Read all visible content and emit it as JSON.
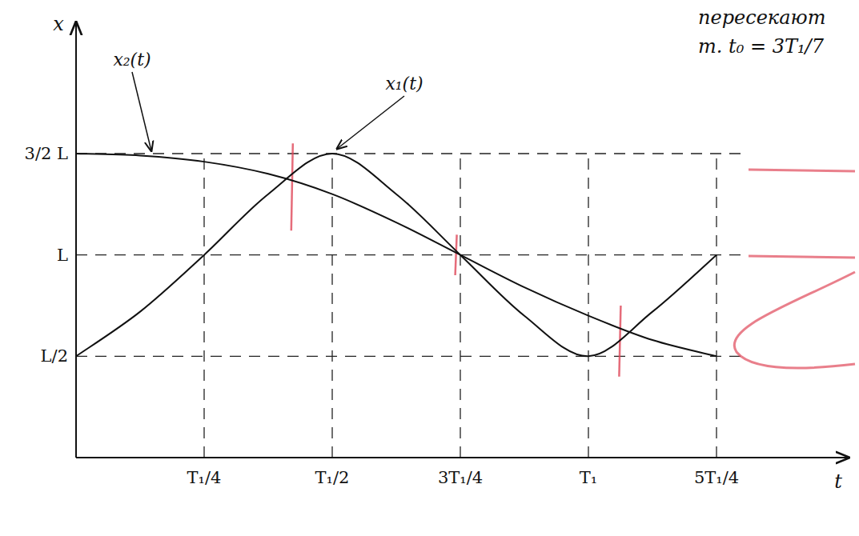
{
  "chart_data": {
    "type": "line",
    "x": [
      0,
      0.125,
      0.25,
      0.375,
      0.5,
      0.625,
      0.75,
      0.875,
      1,
      1.125,
      1.25
    ],
    "series": [
      {
        "name": "x₁(t)",
        "color": "#111111",
        "values": [
          0.5,
          0.72,
          1.0,
          1.3,
          1.5,
          1.3,
          1.0,
          0.7,
          0.5,
          0.72,
          1.0
        ]
      },
      {
        "name": "x₂(t)",
        "color": "#111111",
        "values": [
          1.5,
          1.49,
          1.46,
          1.4,
          1.3,
          1.16,
          1.0,
          0.84,
          0.7,
          0.58,
          0.5
        ]
      }
    ],
    "xlim": [
      0,
      1.5
    ],
    "ylim": [
      0,
      2.1
    ],
    "xticks": [
      {
        "value": 0.25,
        "label": "T₁/4"
      },
      {
        "value": 0.5,
        "label": "T₁/2"
      },
      {
        "value": 0.75,
        "label": "3T₁/4"
      },
      {
        "value": 1,
        "label": "T₁"
      },
      {
        "value": 1.25,
        "label": "5T₁/4"
      }
    ],
    "yticks": [
      {
        "value": 0.5,
        "label": "L/2"
      },
      {
        "value": 1,
        "label": "L"
      },
      {
        "value": 1.5,
        "label": "3/2 L"
      }
    ],
    "x_label": "t",
    "y_label": "x",
    "annotations": [
      "пересекают",
      "т. t₀ = 3T₁/7"
    ],
    "grid": true
  }
}
